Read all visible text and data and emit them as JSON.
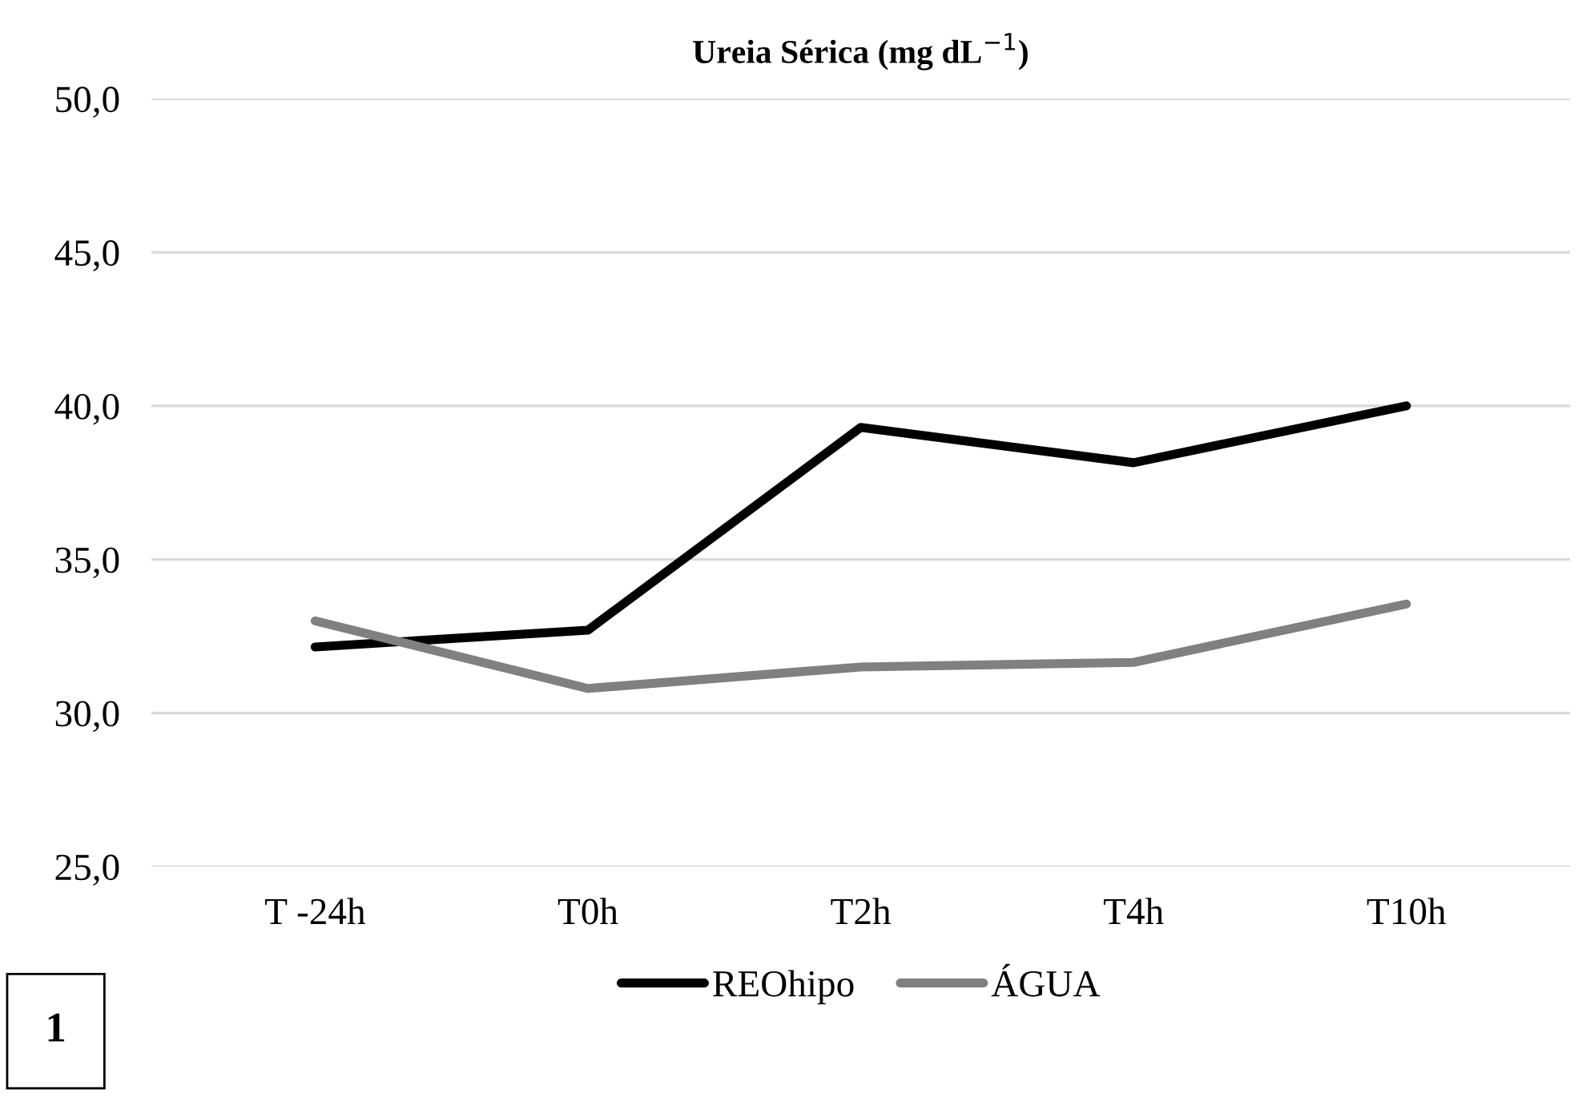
{
  "chart_data": {
    "type": "line",
    "title": "Ureia Sérica (mg dL$^{−1}$)",
    "categories": [
      "T -24h",
      "T0h",
      "T2h",
      "T4h",
      "T10h"
    ],
    "series": [
      {
        "name": "REOhipo",
        "color": "#000000",
        "values": [
          32.15,
          32.7,
          39.3,
          38.15,
          40.0
        ]
      },
      {
        "name": "ÁGUA",
        "color": "#808080",
        "values": [
          33.0,
          30.8,
          31.5,
          31.65,
          33.55
        ]
      }
    ],
    "ylim": [
      25,
      50
    ],
    "yticks": [
      {
        "value": 25,
        "label": "25,0"
      },
      {
        "value": 30,
        "label": "30,0"
      },
      {
        "value": 35,
        "label": "35,0"
      },
      {
        "value": 40,
        "label": "40,0"
      },
      {
        "value": 45,
        "label": "45,0"
      },
      {
        "value": 50,
        "label": "50,0"
      }
    ],
    "grid": "y",
    "legend": "bottom",
    "marker": "none",
    "line_style": "solid",
    "annotations": [
      "1"
    ]
  }
}
